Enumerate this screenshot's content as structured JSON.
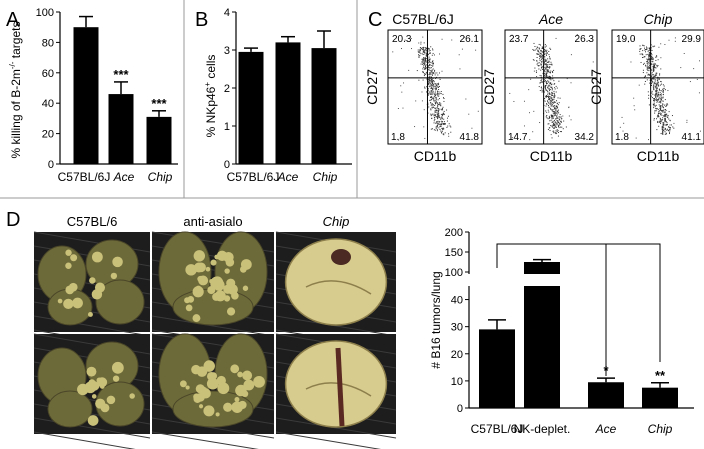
{
  "panels": {
    "A": "A",
    "B": "B",
    "C": "C",
    "D": "D"
  },
  "chart_data": [
    {
      "panel": "A",
      "type": "bar",
      "ylabel_text": "% killing of B-2m",
      "ylabel_sup": "-/-",
      "ylabel_tail": " targets",
      "categories": [
        "C57BL/6J",
        "Ace",
        "Chip"
      ],
      "category_italic": [
        false,
        true,
        true
      ],
      "values": [
        90,
        46,
        31
      ],
      "errors": [
        7,
        8,
        4
      ],
      "significance": [
        "",
        "***",
        "***"
      ],
      "yticks": [
        0,
        20,
        40,
        60,
        80,
        100
      ],
      "ylim": [
        0,
        100
      ]
    },
    {
      "panel": "B",
      "type": "bar",
      "ylabel_text": "% NKp46",
      "ylabel_sup": "+",
      "ylabel_tail": " cells",
      "categories": [
        "C57BL/6J",
        "Ace",
        "Chip"
      ],
      "category_italic": [
        false,
        true,
        true
      ],
      "values": [
        2.95,
        3.2,
        3.05
      ],
      "errors": [
        0.1,
        0.15,
        0.45
      ],
      "yticks": [
        0,
        1,
        2,
        3,
        4
      ],
      "ylim": [
        0,
        4
      ]
    },
    {
      "panel": "C",
      "type": "scatter",
      "xlabel": "CD11b",
      "ylabel": "CD27",
      "plots": [
        {
          "title": "C57BL/6J",
          "italic": false,
          "quadrants": {
            "ul": "20.3",
            "ur": "26.1",
            "lr": "41.8",
            "ll": "1.8"
          }
        },
        {
          "title": "Ace",
          "italic": true,
          "quadrants": {
            "ul": "23.7",
            "ur": "26.3",
            "lr": "34.2",
            "ll": "14.7"
          }
        },
        {
          "title": "Chip",
          "italic": true,
          "quadrants": {
            "ul": "19.0",
            "ur": "29.9",
            "lr": "41.1",
            "ll": "1.8"
          }
        }
      ]
    },
    {
      "panel": "D",
      "type": "bar",
      "ylabel": "# B16 tumors/lung",
      "categories": [
        "C57BL/6J",
        "NK-deplet.",
        "Ace",
        "Chip"
      ],
      "category_italic": [
        false,
        false,
        true,
        true
      ],
      "values": [
        29,
        125,
        9.5,
        7.5
      ],
      "errors": [
        3.5,
        6,
        1.5,
        1.8
      ],
      "significance": [
        "",
        "",
        "*",
        "**"
      ],
      "yticks_lower": [
        0,
        10,
        20,
        30,
        40
      ],
      "yticks_upper": [
        100,
        150,
        200
      ],
      "ylim": [
        0,
        200
      ],
      "axis_break": [
        45,
        95
      ]
    }
  ],
  "photos": {
    "column_labels": [
      "C57BL/6",
      "anti-asialo",
      "Chip"
    ],
    "column_italic": [
      false,
      false,
      true
    ]
  },
  "colors": {
    "bar": "#000000",
    "tissue_light": "#c9c07a",
    "tissue_dark": "#6d6a3a",
    "photo_bg": "#1d1d1d"
  }
}
